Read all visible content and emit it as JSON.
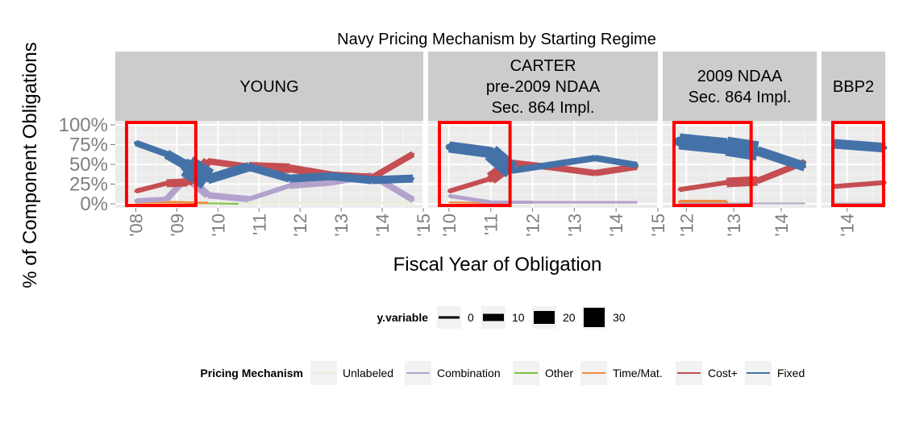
{
  "chart_data": {
    "type": "line",
    "title": "Navy Pricing Mechanism by Starting Regime",
    "xlabel": "Fiscal Year of Obligation",
    "ylabel": "% of Component Obligations",
    "ylim": [
      0,
      1
    ],
    "y_ticks": [
      "0%",
      "25%",
      "50%",
      "75%",
      "100%"
    ],
    "panels": [
      {
        "label": "YOUNG",
        "xlim": [
          2007.5,
          2015
        ],
        "x_ticks": [
          {
            "v": 2008,
            "label": "'08"
          },
          {
            "v": 2009,
            "label": "'09"
          },
          {
            "v": 2010,
            "label": "'10"
          },
          {
            "v": 2011,
            "label": "'11"
          },
          {
            "v": 2012,
            "label": "'12"
          },
          {
            "v": 2013,
            "label": "'13"
          },
          {
            "v": 2014,
            "label": "'14"
          },
          {
            "v": 2015,
            "label": "'15"
          }
        ]
      },
      {
        "label": "CARTER\npre-2009 NDAA\nSec. 864 Impl.",
        "xlim": [
          2009.5,
          2015
        ],
        "x_ticks": [
          {
            "v": 2010,
            "label": "'10"
          },
          {
            "v": 2011,
            "label": "'11"
          },
          {
            "v": 2012,
            "label": "'12"
          },
          {
            "v": 2013,
            "label": "'13"
          },
          {
            "v": 2014,
            "label": "'14"
          },
          {
            "v": 2015,
            "label": "'15"
          }
        ]
      },
      {
        "label": "2009 NDAA\nSec. 864 Impl.",
        "xlim": [
          2011.5,
          2014.75
        ],
        "x_ticks": [
          {
            "v": 2012,
            "label": "'12"
          },
          {
            "v": 2013,
            "label": "'13"
          },
          {
            "v": 2014,
            "label": "'14"
          }
        ]
      },
      {
        "label": "BBP2",
        "xlim": [
          2013.5,
          2014.75
        ],
        "x_ticks": [
          {
            "v": 2014,
            "label": "'14"
          }
        ]
      }
    ],
    "series": [
      {
        "name": "Fixed",
        "color": "#4472a8",
        "panels": [
          [
            [
              2008.0,
              0.77,
              8
            ],
            [
              2008.75,
              0.63,
              12
            ],
            [
              2009.25,
              0.48,
              28
            ],
            [
              2009.75,
              0.31,
              12
            ],
            [
              2010.75,
              0.47,
              10
            ],
            [
              2011.75,
              0.32,
              10
            ],
            [
              2012.75,
              0.35,
              10
            ],
            [
              2013.75,
              0.3,
              10
            ],
            [
              2014.75,
              0.32,
              6
            ]
          ],
          [
            [
              2010.0,
              0.72,
              14
            ],
            [
              2011.0,
              0.65,
              22
            ],
            [
              2011.5,
              0.42,
              8
            ],
            [
              2012.5,
              0.5,
              8
            ],
            [
              2013.5,
              0.58,
              8
            ],
            [
              2014.5,
              0.49,
              6
            ]
          ],
          [
            [
              2011.85,
              0.79,
              20
            ],
            [
              2012.85,
              0.73,
              24
            ],
            [
              2013.5,
              0.67,
              12
            ],
            [
              2014.5,
              0.47,
              6
            ]
          ],
          [
            [
              2013.75,
              0.76,
              12
            ],
            [
              2014.75,
              0.71,
              8
            ]
          ]
        ]
      },
      {
        "name": "Cost+",
        "color": "#c44e52",
        "panels": [
          [
            [
              2008.0,
              0.16,
              6
            ],
            [
              2008.75,
              0.26,
              10
            ],
            [
              2009.25,
              0.27,
              12
            ],
            [
              2009.75,
              0.54,
              8
            ],
            [
              2010.75,
              0.47,
              12
            ],
            [
              2011.75,
              0.45,
              10
            ],
            [
              2012.75,
              0.36,
              10
            ],
            [
              2013.75,
              0.33,
              8
            ],
            [
              2014.75,
              0.63,
              6
            ]
          ],
          [
            [
              2010.0,
              0.16,
              6
            ],
            [
              2011.0,
              0.32,
              16
            ],
            [
              2011.5,
              0.52,
              8
            ],
            [
              2012.5,
              0.46,
              8
            ],
            [
              2013.5,
              0.39,
              8
            ],
            [
              2014.5,
              0.47,
              6
            ]
          ],
          [
            [
              2011.85,
              0.18,
              6
            ],
            [
              2012.85,
              0.27,
              12
            ],
            [
              2013.5,
              0.29,
              8
            ],
            [
              2014.5,
              0.53,
              6
            ]
          ],
          [
            [
              2013.75,
              0.22,
              6
            ],
            [
              2014.75,
              0.27,
              6
            ]
          ]
        ]
      },
      {
        "name": "Combination",
        "color": "#b3a2cc",
        "panels": [
          [
            [
              2008.0,
              0.04,
              6
            ],
            [
              2008.75,
              0.06,
              8
            ],
            [
              2009.25,
              0.34,
              10
            ],
            [
              2009.75,
              0.11,
              8
            ],
            [
              2010.75,
              0.06,
              6
            ],
            [
              2011.75,
              0.23,
              8
            ],
            [
              2012.75,
              0.27,
              8
            ],
            [
              2013.75,
              0.36,
              8
            ],
            [
              2014.75,
              0.05,
              6
            ]
          ],
          [
            [
              2010.0,
              0.1,
              5
            ],
            [
              2011.0,
              0.02,
              4
            ],
            [
              2012.0,
              0.02,
              3
            ],
            [
              2013.5,
              0.02,
              3
            ],
            [
              2014.5,
              0.02,
              3
            ]
          ],
          [
            [
              2011.85,
              0.005,
              2
            ],
            [
              2014.5,
              0.005,
              2
            ]
          ],
          [
            [
              2013.75,
              0.005,
              2
            ],
            [
              2014.75,
              0.005,
              2
            ]
          ]
        ]
      },
      {
        "name": "Time/Mat.",
        "color": "#f08a3c",
        "panels": [
          [
            [
              2008.0,
              0.02,
              3
            ],
            [
              2009.0,
              0.02,
              3
            ],
            [
              2009.75,
              0.01,
              2
            ]
          ],
          [
            [
              2010.0,
              0.02,
              2
            ],
            [
              2011.0,
              0.01,
              2
            ]
          ],
          [
            [
              2011.85,
              0.02,
              6
            ],
            [
              2012.85,
              0.02,
              6
            ]
          ],
          [
            [
              2013.75,
              0.005,
              2
            ],
            [
              2014.75,
              0.005,
              2
            ]
          ]
        ]
      },
      {
        "name": "Other",
        "color": "#7ac143",
        "panels": [
          [
            [
              2009.25,
              0.01,
              2
            ],
            [
              2010.5,
              0.0,
              1.5
            ]
          ],
          [],
          [],
          []
        ]
      },
      {
        "name": "Unlabeled",
        "color": "#e8ecd8",
        "panels": [
          [
            [
              2008.0,
              0.01,
              3
            ],
            [
              2014.75,
              0.01,
              3
            ]
          ],
          [
            [
              2010.0,
              0.01,
              3
            ],
            [
              2014.5,
              0.01,
              3
            ]
          ],
          [
            [
              2011.85,
              0.01,
              3
            ],
            [
              2014.5,
              0.01,
              3
            ]
          ],
          [
            [
              2013.75,
              0.01,
              3
            ],
            [
              2014.75,
              0.01,
              3
            ]
          ]
        ]
      }
    ],
    "highlight_boxes": [
      {
        "panel": 0,
        "x": [
          2007.5,
          2009.5
        ]
      },
      {
        "panel": 1,
        "x": [
          2009.5,
          2011.5
        ]
      },
      {
        "panel": 2,
        "x": [
          2011.5,
          2013.4
        ]
      },
      {
        "panel": 3,
        "x": [
          2013.5,
          2014.75
        ]
      }
    ],
    "legend": {
      "size_title": "y.variable",
      "size_items": [
        {
          "label": "0",
          "w": 3
        },
        {
          "label": "10",
          "w": 9
        },
        {
          "label": "20",
          "w": 16
        },
        {
          "label": "30",
          "w": 24
        }
      ],
      "color_title": "Pricing Mechanism",
      "color_items": [
        "Unlabeled",
        "Combination",
        "Other",
        "Time/Mat.",
        "Cost+",
        "Fixed"
      ],
      "placement": "bottom"
    },
    "grid": true
  }
}
